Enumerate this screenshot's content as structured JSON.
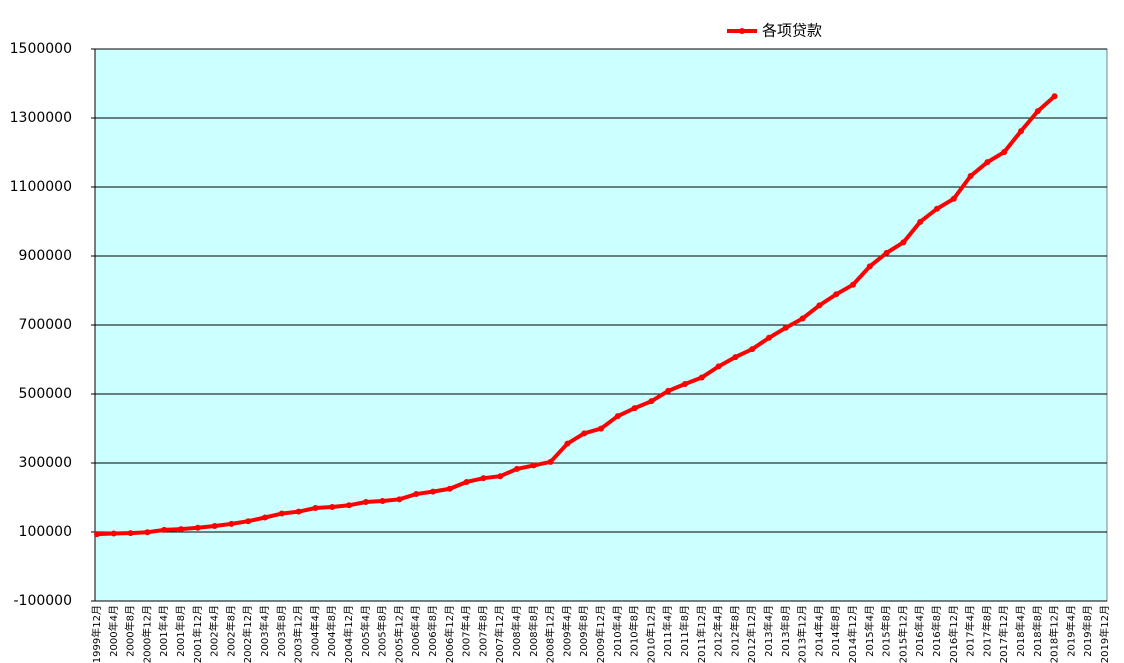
{
  "chart_data": {
    "type": "line",
    "categories": [
      "1999年12月",
      "2000年4月",
      "2000年8月",
      "2000年12月",
      "2001年4月",
      "2001年8月",
      "2001年12月",
      "2002年4月",
      "2002年8月",
      "2002年12月",
      "2003年4月",
      "2003年8月",
      "2003年12月",
      "2004年4月",
      "2004年8月",
      "2004年12月",
      "2005年4月",
      "2005年8月",
      "2005年12月",
      "2006年4月",
      "2006年8月",
      "2006年12月",
      "2007年4月",
      "2007年8月",
      "2007年12月",
      "2008年4月",
      "2008年8月",
      "2008年12月",
      "2009年4月",
      "2009年8月",
      "2009年12月",
      "2010年4月",
      "2010年8月",
      "2010年12月",
      "2011年4月",
      "2011年8月",
      "2011年12月",
      "2012年4月",
      "2012年8月",
      "2012年12月",
      "2013年4月",
      "2013年8月",
      "2013年12月",
      "2014年4月",
      "2014年8月",
      "2014年12月",
      "2015年4月",
      "2015年8月",
      "2015年12月",
      "2016年4月",
      "2016年8月",
      "2016年12月",
      "2017年4月",
      "2017年8月",
      "2017年12月",
      "2018年4月",
      "2018年8月",
      "2018年12月",
      "2019年4月",
      "2019年8月",
      "2019年12月"
    ],
    "series": [
      {
        "name": "各项贷款",
        "color": "#ff0000",
        "values": [
          93700,
          95800,
          96800,
          99400,
          106000,
          108500,
          112300,
          117500,
          123500,
          131300,
          142000,
          153500,
          159000,
          169500,
          172500,
          177400,
          187000,
          190000,
          194700,
          210000,
          217000,
          225300,
          245000,
          256000,
          261700,
          283000,
          293000,
          303400,
          356000,
          386000,
          399700,
          436000,
          459000,
          479200,
          509000,
          529000,
          547900,
          580000,
          607000,
          629900,
          663000,
          692000,
          719000,
          757000,
          789000,
          816800,
          870000,
          909000,
          939500,
          999000,
          1037000,
          1066000,
          1132000,
          1172000,
          1201300,
          1262000,
          1320000,
          1363000,
          null,
          null,
          null
        ]
      }
    ],
    "ylim": [
      -100000,
      1500000
    ],
    "yticks": [
      -100000,
      100000,
      300000,
      500000,
      700000,
      900000,
      1100000,
      1300000,
      1500000
    ],
    "grid": true,
    "legend": "top",
    "background": "#ccffff"
  }
}
